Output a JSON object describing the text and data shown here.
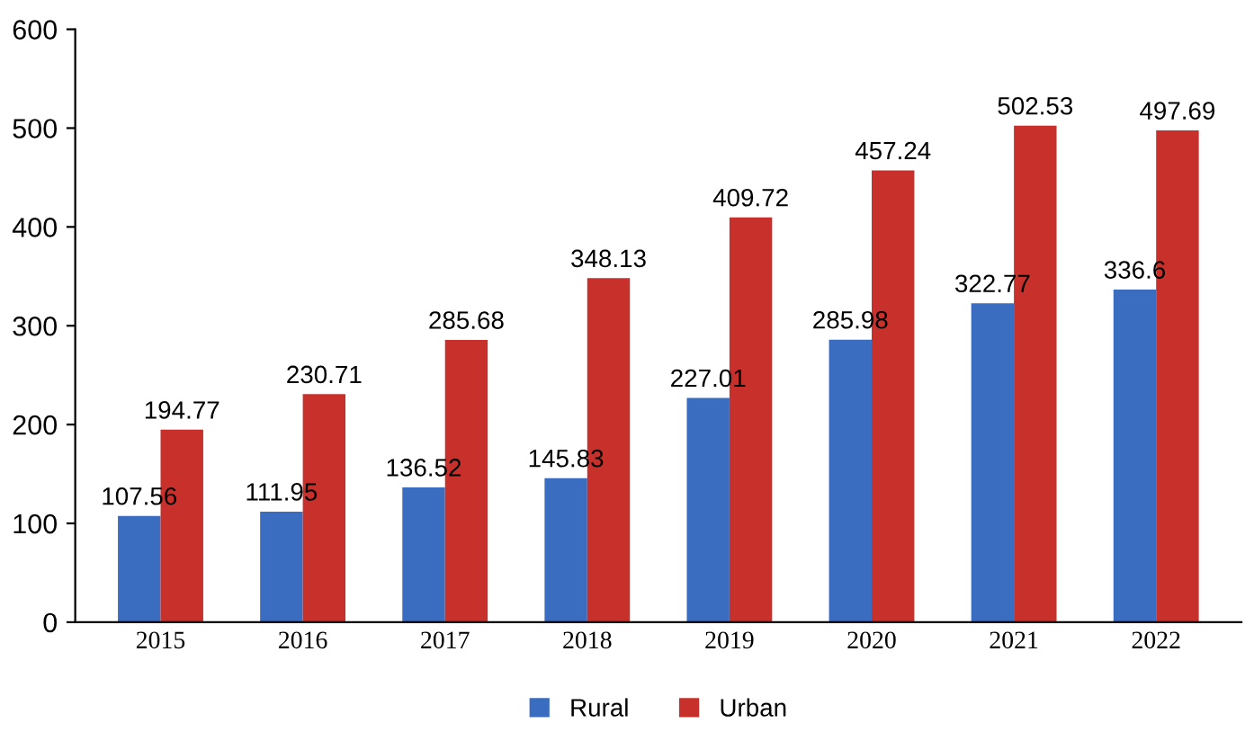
{
  "chart_data": {
    "type": "bar",
    "categories": [
      "2015",
      "2016",
      "2017",
      "2018",
      "2019",
      "2020",
      "2021",
      "2022"
    ],
    "series": [
      {
        "name": "Rural",
        "color": "#3a6cc0",
        "values": [
          107.56,
          111.95,
          136.52,
          145.83,
          227.01,
          285.98,
          322.77,
          336.6
        ]
      },
      {
        "name": "Urban",
        "color": "#c8302c",
        "values": [
          194.77,
          230.71,
          285.68,
          348.13,
          409.72,
          457.24,
          502.53,
          497.69
        ]
      }
    ],
    "ylim": [
      0,
      600
    ],
    "yticks": [
      0,
      100,
      200,
      300,
      400,
      500,
      600
    ],
    "grid": false,
    "legend": "bottom",
    "data_labels": true
  }
}
